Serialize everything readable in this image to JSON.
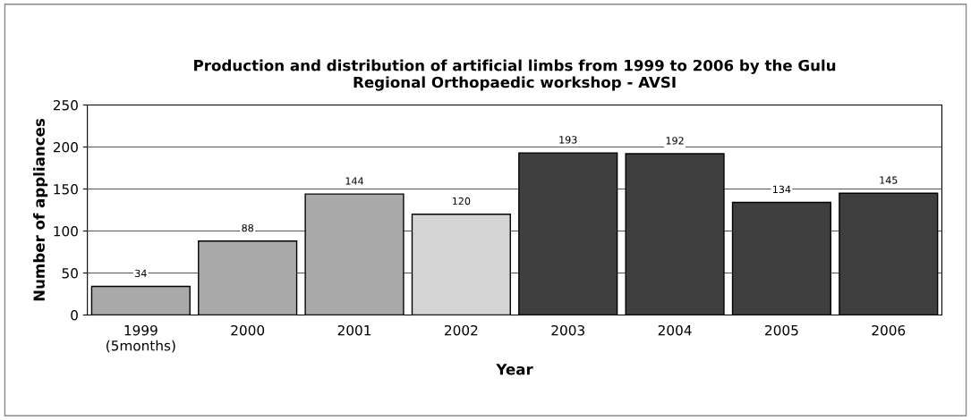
{
  "chart_data": {
    "type": "bar",
    "title": "Production and distribution of artificial limbs from 1999 to 2006 by the Gulu\nRegional Orthopaedic workshop - AVSI",
    "xlabel": "Year",
    "ylabel": "Number of appliances",
    "categories": [
      "1999\n(5months)",
      "2000",
      "2001",
      "2002",
      "2003",
      "2004",
      "2005",
      "2006"
    ],
    "values": [
      34,
      88,
      144,
      120,
      193,
      192,
      134,
      145
    ],
    "colors": [
      "#a9a9a9",
      "#a9a9a9",
      "#a9a9a9",
      "#d4d4d4",
      "#3f3f3f",
      "#3f3f3f",
      "#3f3f3f",
      "#3f3f3f"
    ],
    "ylim": [
      0,
      250
    ],
    "yticks": [
      0,
      50,
      100,
      150,
      200,
      250
    ],
    "grid": "y",
    "data_labels": true,
    "legend": false
  }
}
